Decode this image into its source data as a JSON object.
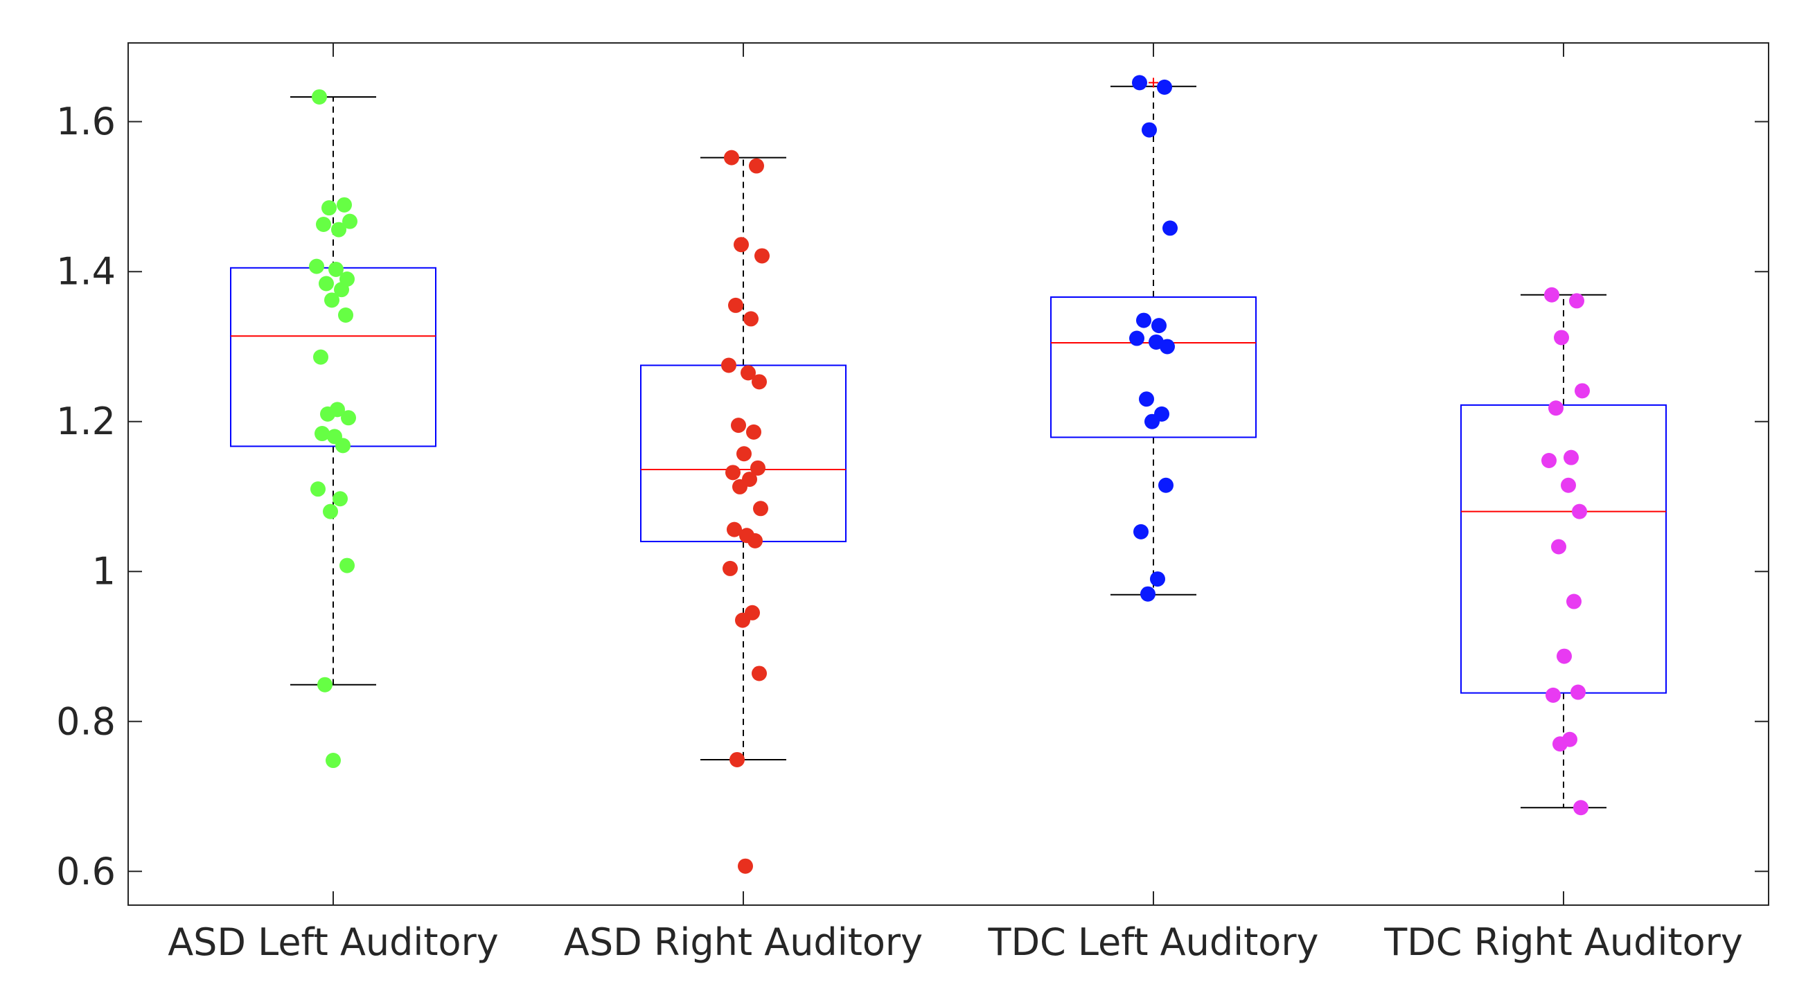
{
  "chart_data": {
    "type": "box",
    "title": "",
    "xlabel": "",
    "ylabel": "",
    "ylim": [
      0.555,
      1.705
    ],
    "yticks": [
      0.6,
      0.8,
      1,
      1.2,
      1.4,
      1.6
    ],
    "ytick_labels": [
      "0.6",
      "0.8",
      "1",
      "1.2",
      "1.4",
      "1.6"
    ],
    "grid": false,
    "categories": [
      "ASD Left Auditory",
      "ASD Right Auditory",
      "TDC Left Auditory",
      "TDC Right Auditory"
    ],
    "series": [
      {
        "color": "#66ff44",
        "box": {
          "q1": 1.167,
          "median": 1.314,
          "q3": 1.405,
          "whisker_low": 0.849,
          "whisker_high": 1.633
        },
        "outliers": [
          0.748
        ],
        "points": [
          1.633,
          1.489,
          1.485,
          1.467,
          1.463,
          1.456,
          1.407,
          1.403,
          1.39,
          1.384,
          1.376,
          1.362,
          1.342,
          1.286,
          1.216,
          1.21,
          1.205,
          1.184,
          1.18,
          1.168,
          1.11,
          1.097,
          1.08,
          1.008,
          0.849,
          0.748
        ]
      },
      {
        "color": "#e8301e",
        "box": {
          "q1": 1.04,
          "median": 1.136,
          "q3": 1.275,
          "whisker_low": 0.749,
          "whisker_high": 1.552
        },
        "outliers": [
          0.607
        ],
        "points": [
          1.552,
          1.541,
          1.436,
          1.421,
          1.355,
          1.337,
          1.275,
          1.265,
          1.253,
          1.195,
          1.186,
          1.157,
          1.138,
          1.132,
          1.123,
          1.113,
          1.084,
          1.056,
          1.048,
          1.041,
          1.004,
          0.945,
          0.935,
          0.864,
          0.749,
          0.607
        ]
      },
      {
        "color": "#0a1aff",
        "box": {
          "q1": 1.179,
          "median": 1.305,
          "q3": 1.366,
          "whisker_low": 0.969,
          "whisker_high": 1.647
        },
        "outliers": [
          1.652
        ],
        "points": [
          1.652,
          1.646,
          1.589,
          1.458,
          1.335,
          1.328,
          1.311,
          1.306,
          1.3,
          1.23,
          1.21,
          1.2,
          1.115,
          1.053,
          0.99,
          0.97
        ]
      },
      {
        "color": "#e83af2",
        "box": {
          "q1": 0.838,
          "median": 1.08,
          "q3": 1.222,
          "whisker_low": 0.685,
          "whisker_high": 1.369
        },
        "outliers": [],
        "points": [
          1.369,
          1.361,
          1.312,
          1.241,
          1.218,
          1.152,
          1.148,
          1.115,
          1.08,
          1.033,
          0.96,
          0.887,
          0.839,
          0.835,
          0.776,
          0.77,
          0.685
        ]
      }
    ]
  }
}
